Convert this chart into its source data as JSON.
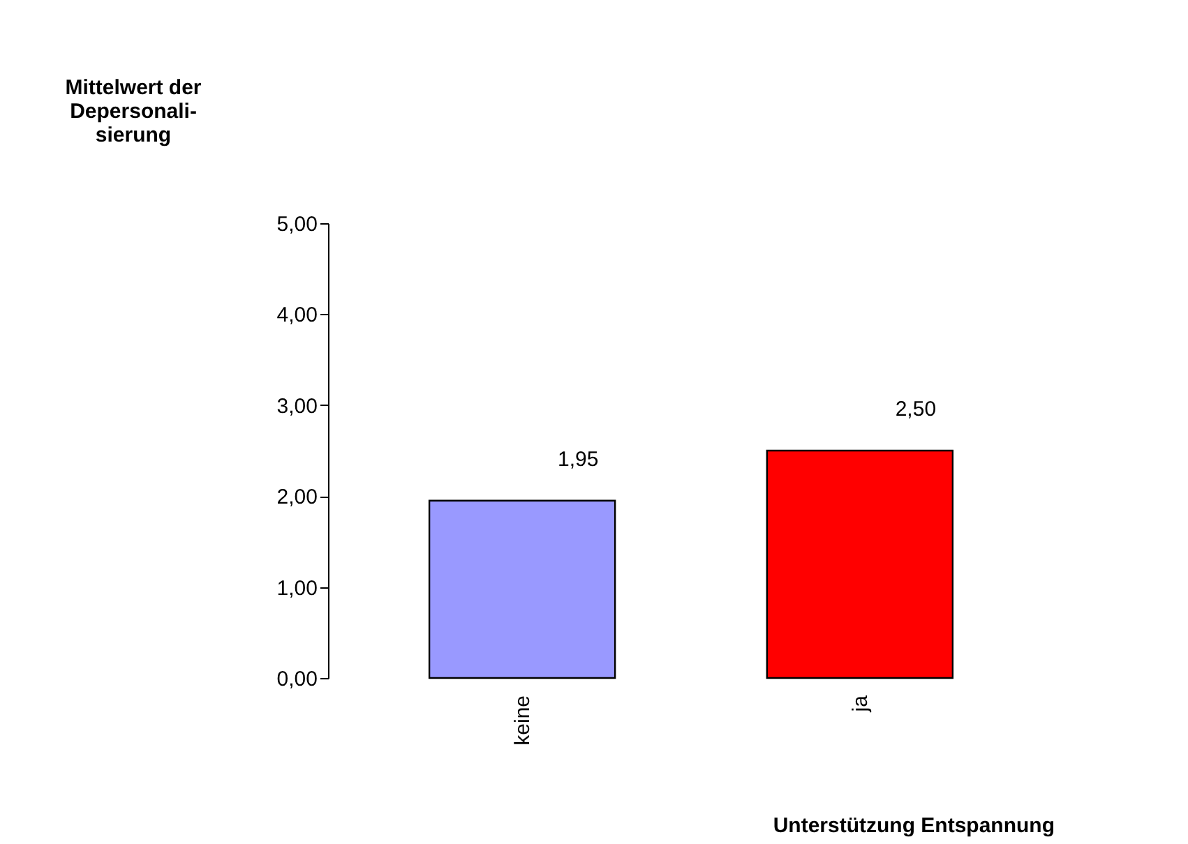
{
  "chart_data": {
    "type": "bar",
    "ylabel": "Mittelwert der Depersonali-sierung",
    "xlabel": "Unterstützung Entspannung",
    "categories": [
      "keine",
      "ja"
    ],
    "values": [
      1.95,
      2.5
    ],
    "colors": [
      "#9999ff",
      "#ff0000"
    ],
    "value_labels": [
      "1,95",
      "2,50"
    ],
    "ylim": [
      0,
      5
    ],
    "yticks": [
      {
        "value": 0,
        "label": "0,00"
      },
      {
        "value": 1,
        "label": "1,00"
      },
      {
        "value": 2,
        "label": "2,00"
      },
      {
        "value": 3,
        "label": "3,00"
      },
      {
        "value": 4,
        "label": "4,00"
      },
      {
        "value": 5,
        "label": "5,00"
      }
    ],
    "grid": false,
    "legend": false
  }
}
